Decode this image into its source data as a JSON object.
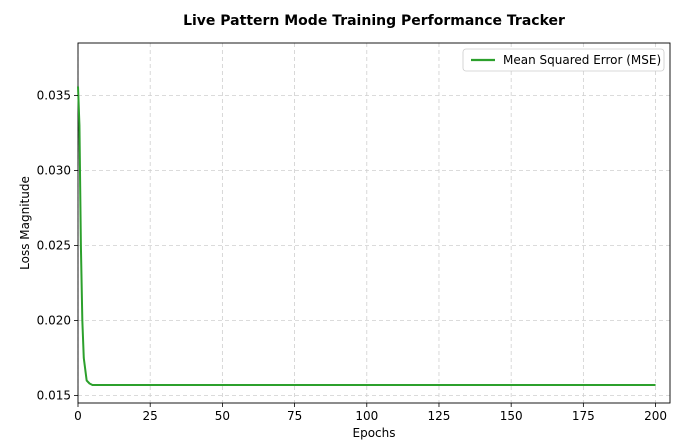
{
  "chart_data": {
    "type": "line",
    "title": "Live Pattern Mode Training Performance Tracker",
    "xlabel": "Epochs",
    "ylabel": "Loss Magnitude",
    "xlim": [
      0,
      205
    ],
    "ylim": [
      0.0145,
      0.0385
    ],
    "xticks": [
      0,
      25,
      50,
      75,
      100,
      125,
      150,
      175,
      200
    ],
    "yticks": [
      0.015,
      0.02,
      0.025,
      0.03,
      0.035
    ],
    "ytick_labels": [
      "0.015",
      "0.020",
      "0.025",
      "0.030",
      "0.035"
    ],
    "grid": true,
    "legend_position": "upper right",
    "series": [
      {
        "name": "Mean Squared Error (MSE)",
        "color": "#2ca02c",
        "x": [
          0,
          0.5,
          1,
          1.5,
          2,
          3,
          4,
          5,
          10,
          25,
          50,
          100,
          150,
          200
        ],
        "y": [
          0.0356,
          0.033,
          0.025,
          0.02,
          0.0175,
          0.016,
          0.0158,
          0.0157,
          0.0157,
          0.0157,
          0.0157,
          0.0157,
          0.0157,
          0.0157
        ]
      }
    ]
  }
}
